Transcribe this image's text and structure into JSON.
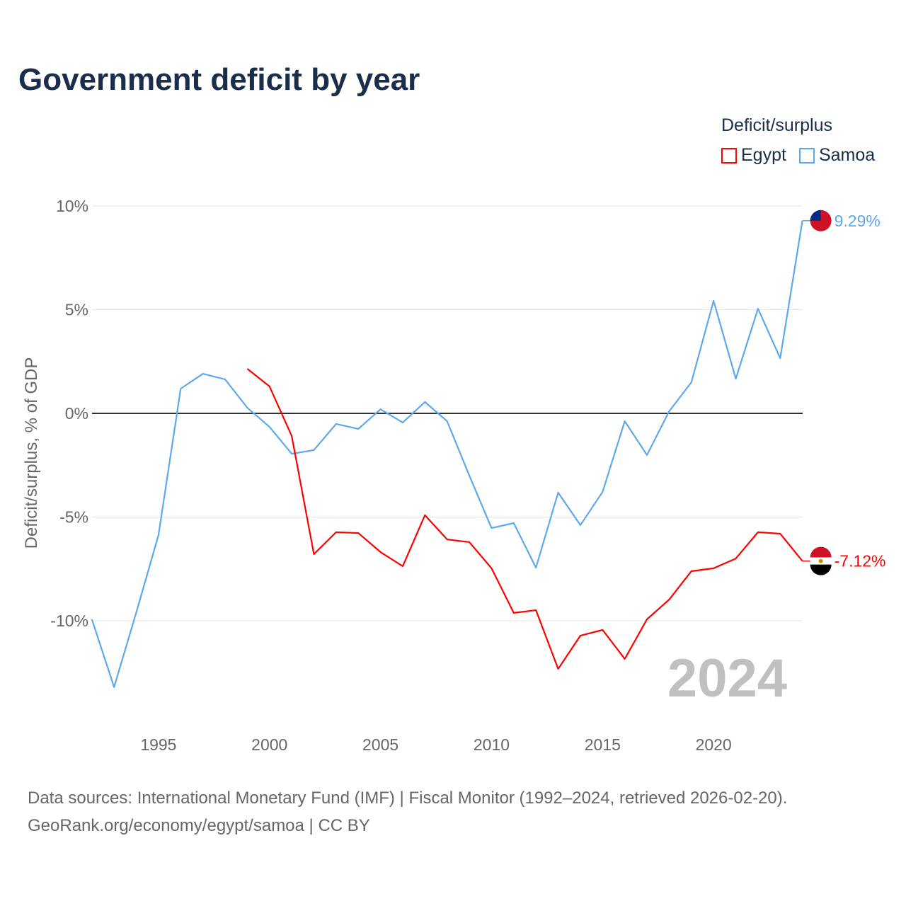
{
  "title": "Government deficit by year",
  "legend": {
    "title": "Deficit/surplus",
    "items": [
      {
        "name": "Egypt",
        "color": "#ff0000"
      },
      {
        "name": "Samoa",
        "color": "#5ea8ec"
      }
    ]
  },
  "year_watermark": "2024",
  "source_line1": "Data sources: International Monetary Fund (IMF) | Fiscal Monitor (1992–2024, retrieved 2026-02-20).",
  "source_line2": "GeoRank.org/economy/egypt/samoa | CC BY",
  "chart_data": {
    "type": "line",
    "title": "Government deficit by year",
    "xlabel": "",
    "ylabel": "Deficit/surplus, % of GDP",
    "xlim": [
      1992,
      2024
    ],
    "ylim": [
      -14,
      10.7
    ],
    "yticks": [
      10,
      5,
      0,
      -5,
      -10
    ],
    "ytick_labels": [
      "10%",
      "5%",
      "0%",
      "-5%",
      "-10%"
    ],
    "xticks": [
      1995,
      2000,
      2005,
      2010,
      2015,
      2020
    ],
    "xtick_labels": [
      "1995",
      "2000",
      "2005",
      "2010",
      "2015",
      "2020"
    ],
    "grid": true,
    "legend_position": "top-right",
    "series": [
      {
        "name": "Samoa",
        "color": "#5ea8ec",
        "end_label": "9.29%",
        "x": [
          1992,
          1993,
          1994,
          1995,
          1996,
          1997,
          1998,
          1999,
          2000,
          2001,
          2002,
          2003,
          2004,
          2005,
          2006,
          2007,
          2008,
          2009,
          2010,
          2011,
          2012,
          2013,
          2014,
          2015,
          2016,
          2017,
          2018,
          2019,
          2020,
          2021,
          2022,
          2023,
          2024
        ],
        "values": [
          -9.93,
          -13.2,
          -9.6,
          -5.87,
          1.19,
          1.91,
          1.64,
          0.27,
          -0.65,
          -1.95,
          -1.77,
          -0.51,
          -0.75,
          0.2,
          -0.44,
          0.55,
          -0.38,
          -3.0,
          -5.53,
          -5.29,
          -7.44,
          -3.82,
          -5.39,
          -3.79,
          -0.38,
          -2.01,
          0.1,
          1.5,
          5.43,
          1.67,
          5.05,
          2.66,
          9.29
        ]
      },
      {
        "name": "Egypt",
        "color": "#ff0000",
        "end_label": "-7.12%",
        "x": [
          1999,
          2000,
          2001,
          2002,
          2003,
          2004,
          2005,
          2006,
          2007,
          2008,
          2009,
          2010,
          2011,
          2012,
          2013,
          2014,
          2015,
          2016,
          2017,
          2018,
          2019,
          2020,
          2021,
          2022,
          2023,
          2024
        ],
        "values": [
          2.15,
          1.3,
          -1.09,
          -6.79,
          -5.73,
          -5.77,
          -6.69,
          -7.37,
          -4.91,
          -6.08,
          -6.21,
          -7.47,
          -9.62,
          -9.49,
          -12.32,
          -10.72,
          -10.44,
          -11.84,
          -9.93,
          -8.98,
          -7.61,
          -7.47,
          -7.0,
          -5.73,
          -5.8,
          -7.12
        ]
      }
    ]
  }
}
